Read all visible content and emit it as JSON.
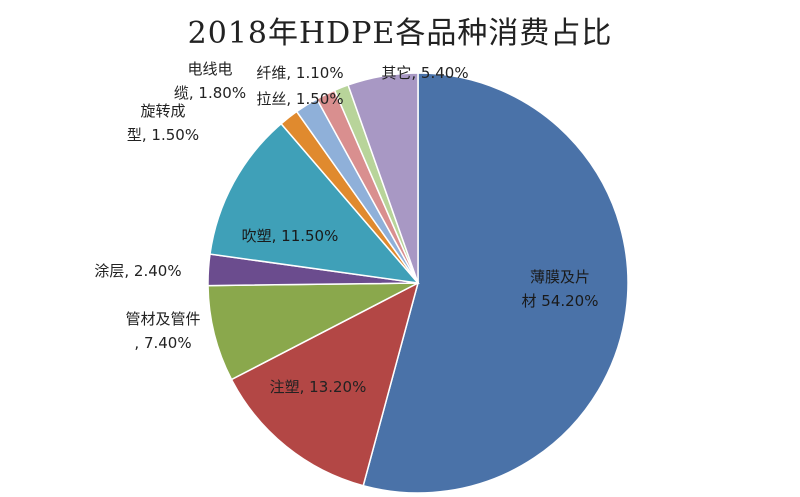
{
  "chart_data": {
    "type": "pie",
    "title": "2018年HDPE各品种消费占比",
    "slices": [
      {
        "name": "薄膜及片材",
        "value": 54.2,
        "label": "54.20%",
        "color": "#4a72a8"
      },
      {
        "name": "注塑",
        "value": 13.2,
        "label": "13.20%",
        "color": "#b34745"
      },
      {
        "name": "管材及管件",
        "value": 7.4,
        "label": "7.40%",
        "color": "#8aa84c"
      },
      {
        "name": "涂层",
        "value": 2.4,
        "label": "2.40%",
        "color": "#6b4c8e"
      },
      {
        "name": "吹塑",
        "value": 11.5,
        "label": "11.50%",
        "color": "#3fa0b8"
      },
      {
        "name": "旋转成型",
        "value": 1.5,
        "label": "1.50%",
        "color": "#e08a2e"
      },
      {
        "name": "电线电缆",
        "value": 1.8,
        "label": "1.80%",
        "color": "#8fb0d9"
      },
      {
        "name": "拉丝",
        "value": 1.5,
        "label": "1.50%",
        "color": "#d98f8f"
      },
      {
        "name": "纤维",
        "value": 1.1,
        "label": "1.10%",
        "color": "#b8d49a"
      },
      {
        "name": "其它",
        "value": 5.4,
        "label": "5.40%",
        "color": "#a898c4"
      }
    ]
  }
}
